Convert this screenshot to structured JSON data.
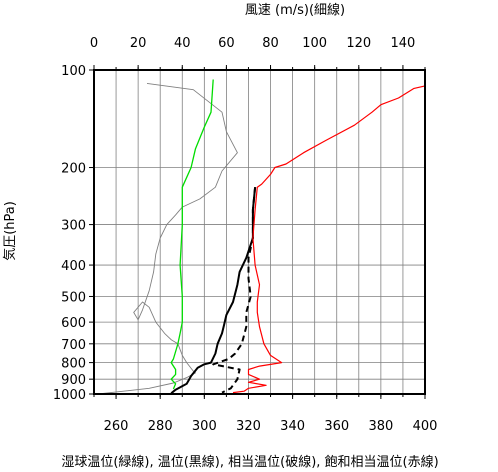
{
  "chart_data": {
    "type": "line",
    "top_axis_title": "風速 (m/s)(細線)",
    "y_axis_title": "気圧(hPa)",
    "bottom_axis_title": "湿球温位(緑線), 温位(黒線), 相当温位(破線), 飽和相当温位(赤線)",
    "y_axis": {
      "scale": "log",
      "range": [
        100,
        1000
      ],
      "reversed": true,
      "ticks": [
        100,
        200,
        300,
        400,
        500,
        600,
        700,
        800,
        900,
        1000
      ]
    },
    "x_axis_bottom": {
      "range": [
        250,
        400
      ],
      "ticks": [
        260,
        280,
        300,
        320,
        340,
        360,
        380,
        400
      ],
      "unit": "K"
    },
    "x_axis_top": {
      "range": [
        0,
        150
      ],
      "ticks": [
        0,
        20,
        40,
        60,
        80,
        100,
        120,
        140
      ],
      "unit": "m/s"
    },
    "grid": true,
    "colors": {
      "wind": "#808080",
      "wet_bulb": "#00dd00",
      "theta": "#000000",
      "theta_e": "#000000",
      "theta_es": "#ff0000",
      "grid": "#808080"
    },
    "series": [
      {
        "name": "風速",
        "axis": "top",
        "style": "thin",
        "points": [
          [
            24,
            110
          ],
          [
            45,
            115
          ],
          [
            58,
            135
          ],
          [
            60,
            155
          ],
          [
            65,
            180
          ],
          [
            58,
            205
          ],
          [
            55,
            230
          ],
          [
            48,
            250
          ],
          [
            40,
            265
          ],
          [
            37,
            280
          ],
          [
            33,
            300
          ],
          [
            30,
            330
          ],
          [
            28,
            370
          ],
          [
            27,
            420
          ],
          [
            25,
            480
          ],
          [
            22,
            550
          ],
          [
            20,
            590
          ],
          [
            18,
            560
          ],
          [
            22,
            520
          ],
          [
            25,
            540
          ],
          [
            28,
            600
          ],
          [
            32,
            650
          ],
          [
            35,
            680
          ],
          [
            38,
            700
          ],
          [
            40,
            760
          ],
          [
            42,
            800
          ],
          [
            45,
            850
          ],
          [
            46,
            860
          ],
          [
            42,
            890
          ],
          [
            36,
            925
          ],
          [
            25,
            960
          ],
          [
            3,
            998
          ]
        ]
      },
      {
        "name": "湿球温位",
        "axis": "bottom",
        "style": "solid",
        "color": "#00dd00",
        "points": [
          [
            304,
            107
          ],
          [
            303,
            135
          ],
          [
            300,
            150
          ],
          [
            296,
            175
          ],
          [
            294,
            200
          ],
          [
            290,
            230
          ],
          [
            290,
            300
          ],
          [
            289,
            400
          ],
          [
            290,
            500
          ],
          [
            290,
            600
          ],
          [
            289,
            650
          ],
          [
            288,
            700
          ],
          [
            286,
            780
          ],
          [
            285,
            800
          ],
          [
            287,
            840
          ],
          [
            287,
            870
          ],
          [
            285,
            900
          ],
          [
            287,
            930
          ],
          [
            286,
            965
          ]
        ]
      },
      {
        "name": "温位",
        "axis": "bottom",
        "style": "solid",
        "color": "#000000",
        "points": [
          [
            323,
            230
          ],
          [
            322,
            270
          ],
          [
            322,
            300
          ],
          [
            322,
            330
          ],
          [
            319,
            380
          ],
          [
            316,
            420
          ],
          [
            315,
            460
          ],
          [
            313,
            520
          ],
          [
            310,
            570
          ],
          [
            309,
            610
          ],
          [
            308,
            650
          ],
          [
            306,
            700
          ],
          [
            305,
            750
          ],
          [
            303,
            800
          ],
          [
            300,
            810
          ],
          [
            297,
            830
          ],
          [
            294,
            880
          ],
          [
            292,
            930
          ],
          [
            287,
            970
          ],
          [
            285,
            995
          ]
        ]
      },
      {
        "name": "相当温位",
        "axis": "bottom",
        "style": "dashed",
        "color": "#000000",
        "points": [
          [
            323,
            230
          ],
          [
            322,
            270
          ],
          [
            322,
            300
          ],
          [
            322,
            330
          ],
          [
            320,
            380
          ],
          [
            320,
            440
          ],
          [
            321,
            500
          ],
          [
            319,
            560
          ],
          [
            319,
            620
          ],
          [
            317,
            700
          ],
          [
            314,
            750
          ],
          [
            311,
            780
          ],
          [
            304,
            810
          ],
          [
            316,
            840
          ],
          [
            315,
            900
          ],
          [
            312,
            960
          ],
          [
            308,
            990
          ]
        ]
      },
      {
        "name": "飽和相当温位",
        "axis": "bottom",
        "style": "solid",
        "color": "#ff0000",
        "points": [
          [
            400,
            112
          ],
          [
            395,
            114
          ],
          [
            388,
            122
          ],
          [
            380,
            128
          ],
          [
            376,
            135
          ],
          [
            368,
            148
          ],
          [
            355,
            165
          ],
          [
            345,
            180
          ],
          [
            337,
            195
          ],
          [
            332,
            200
          ],
          [
            330,
            210
          ],
          [
            326,
            225
          ],
          [
            324,
            230
          ],
          [
            323,
            270
          ],
          [
            322,
            330
          ],
          [
            323,
            400
          ],
          [
            325,
            460
          ],
          [
            324,
            520
          ],
          [
            324,
            560
          ],
          [
            325,
            620
          ],
          [
            327,
            700
          ],
          [
            330,
            760
          ],
          [
            335,
            800
          ],
          [
            325,
            820
          ],
          [
            320,
            840
          ],
          [
            320,
            870
          ],
          [
            325,
            900
          ],
          [
            320,
            920
          ],
          [
            328,
            940
          ],
          [
            320,
            960
          ],
          [
            318,
            980
          ],
          [
            313,
            990
          ]
        ]
      }
    ]
  }
}
